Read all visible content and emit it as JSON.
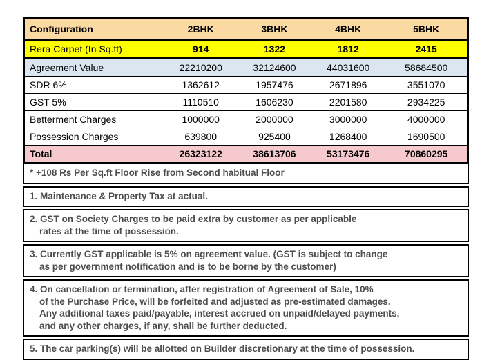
{
  "colors": {
    "header_bg": "#FBD9A3",
    "carpet_bg": "#FFFF00",
    "agreement_bg": "#DCE6F1",
    "total_bg": "#F5C9CD",
    "border": "#000000",
    "note_text": "#4D4D4D"
  },
  "table": {
    "columns": [
      "Configuration",
      "2BHK",
      "3BHK",
      "4BHK",
      "5BHK"
    ],
    "rows": [
      {
        "label": "Rera Carpet (In Sq.ft)",
        "values": [
          "914",
          "1322",
          "1812",
          "2415"
        ],
        "style": "carpet"
      },
      {
        "label": "Agreement Value",
        "values": [
          "22210200",
          "32124600",
          "44031600",
          "58684500"
        ],
        "style": "agreement"
      },
      {
        "label": "SDR 6%",
        "values": [
          "1362612",
          "1957476",
          "2671896",
          "3551070"
        ],
        "style": "plain"
      },
      {
        "label": "GST 5%",
        "values": [
          "1110510",
          "1606230",
          "2201580",
          "2934225"
        ],
        "style": "plain"
      },
      {
        "label": "Betterment Charges",
        "values": [
          "1000000",
          "2000000",
          "3000000",
          "4000000"
        ],
        "style": "plain"
      },
      {
        "label": "Possession Charges",
        "values": [
          "639800",
          "925400",
          "1268400",
          "1690500"
        ],
        "style": "plain"
      },
      {
        "label": "Total",
        "values": [
          "26323122",
          "38613706",
          "53173476",
          "70860295"
        ],
        "style": "total"
      }
    ]
  },
  "notes": [
    {
      "lines": [
        "* +108 Rs Per Sq.ft Floor Rise from Second habitual Floor"
      ]
    },
    {
      "lines": [
        "1. Maintenance & Property Tax at actual."
      ]
    },
    {
      "lines": [
        "2. GST on Society Charges to be paid extra by customer as per applicable",
        "rates at the time of possession."
      ]
    },
    {
      "lines": [
        "3. Currently GST applicable is 5% on agreement value. (GST is subject to change",
        "as per government notification and is to be borne by the customer)"
      ]
    },
    {
      "lines": [
        "4. On cancellation or termination, after registration of Agreement of Sale, 10%",
        "of the Purchase Price, will be forfeited and adjusted as pre-estimated damages.",
        "Any additional taxes paid/payable, interest accrued on unpaid/delayed payments,",
        "and any other charges, if any, shall be further deducted."
      ]
    },
    {
      "lines": [
        "5. The car parking(s) will be allotted on Builder discretionary at the time of possession."
      ]
    }
  ]
}
